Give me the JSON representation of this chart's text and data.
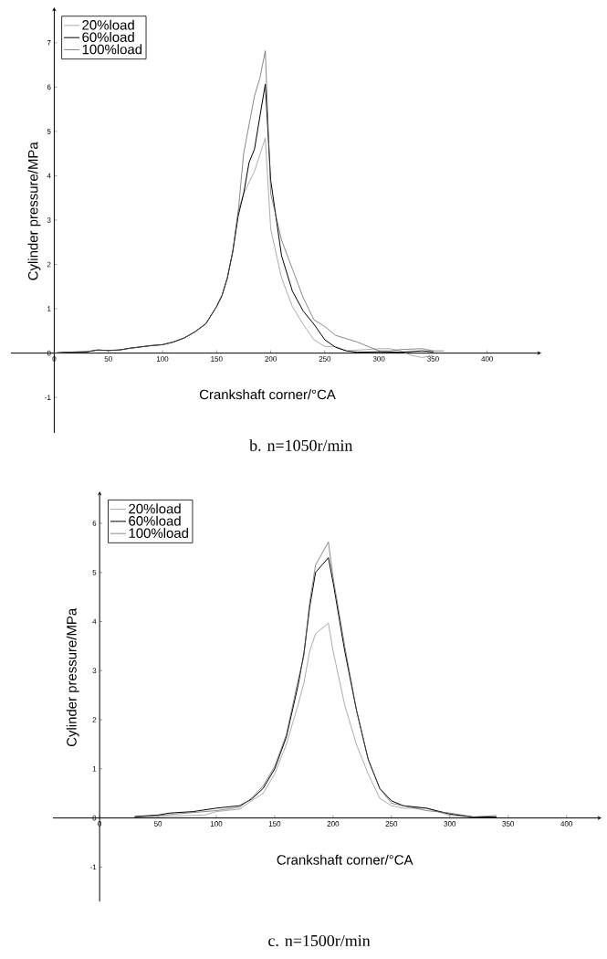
{
  "chart_data": [
    {
      "type": "line",
      "title": "b. n=1050r/min",
      "xlabel": "Crankshaft corner/°CA",
      "ylabel": "Cylinder pressure/MPa",
      "xlim": [
        -40,
        450
      ],
      "ylim": [
        -1.8,
        7.8
      ],
      "xticks": [
        0,
        50,
        100,
        150,
        200,
        250,
        300,
        350,
        400
      ],
      "yticks": [
        -1,
        0,
        1,
        2,
        3,
        4,
        5,
        6,
        7
      ],
      "legend": "top left",
      "marker": "none",
      "line_style": "solid",
      "series": [
        {
          "name": "20%load",
          "color": "#888888",
          "x": [
            0,
            10,
            30,
            40,
            50,
            60,
            70,
            80,
            90,
            100,
            110,
            120,
            130,
            140,
            150,
            155,
            160,
            165,
            170,
            175,
            185,
            195,
            200,
            210,
            220,
            230,
            240,
            250,
            260,
            270,
            300,
            310,
            320,
            330,
            340,
            350
          ],
          "values": [
            0,
            0.02,
            0.03,
            0.07,
            0.06,
            0.07,
            0.11,
            0.14,
            0.17,
            0.19,
            0.25,
            0.34,
            0.48,
            0.66,
            1.05,
            1.3,
            1.7,
            2.3,
            3.2,
            3.6,
            4.1,
            4.85,
            2.8,
            1.7,
            1.05,
            0.65,
            0.3,
            0.15,
            0.15,
            0.05,
            0.1,
            0.1,
            0.05,
            -0.05,
            -0.1,
            -0.05
          ]
        },
        {
          "name": "60%load",
          "color": "#000000",
          "x": [
            0,
            10,
            30,
            40,
            50,
            60,
            70,
            80,
            90,
            100,
            110,
            120,
            130,
            140,
            150,
            155,
            160,
            165,
            170,
            175,
            180,
            185,
            195,
            200,
            210,
            220,
            230,
            240,
            250,
            260,
            270,
            280,
            300,
            320,
            340,
            350
          ],
          "values": [
            0,
            0.02,
            0.03,
            0.07,
            0.06,
            0.07,
            0.11,
            0.14,
            0.17,
            0.19,
            0.25,
            0.34,
            0.48,
            0.66,
            1.05,
            1.3,
            1.7,
            2.3,
            3.1,
            3.6,
            4.3,
            4.6,
            6.07,
            3.9,
            2.2,
            1.4,
            0.95,
            0.65,
            0.3,
            0.13,
            0.05,
            0.02,
            0.03,
            0.02,
            0.05,
            0.03
          ]
        },
        {
          "name": "100%load",
          "color": "#555555",
          "x": [
            0,
            10,
            30,
            40,
            50,
            60,
            70,
            80,
            90,
            100,
            110,
            120,
            130,
            140,
            150,
            155,
            160,
            165,
            170,
            175,
            185,
            190,
            195,
            200,
            210,
            220,
            230,
            240,
            250,
            260,
            280,
            300,
            310,
            320,
            340,
            350,
            360
          ],
          "values": [
            0,
            0.02,
            0.03,
            0.07,
            0.06,
            0.07,
            0.11,
            0.14,
            0.17,
            0.19,
            0.25,
            0.34,
            0.48,
            0.66,
            1.05,
            1.3,
            1.7,
            2.3,
            3.2,
            4.5,
            5.8,
            6.2,
            6.82,
            3.6,
            2.55,
            1.9,
            1.25,
            0.75,
            0.6,
            0.4,
            0.25,
            0.05,
            0.05,
            0.08,
            0.1,
            0.05,
            0.05
          ]
        }
      ]
    },
    {
      "type": "line",
      "title": "c. n=1500r/min",
      "xlabel": "Crankshaft corner/°CA",
      "ylabel": "Cylinder pressure/MPa",
      "xlim": [
        -40,
        430
      ],
      "ylim": [
        -1.7,
        6.65
      ],
      "xticks": [
        0,
        50,
        100,
        150,
        200,
        250,
        300,
        350,
        400
      ],
      "yticks": [
        -1,
        0,
        1,
        2,
        3,
        4,
        5,
        6
      ],
      "legend": "top left",
      "marker": "none",
      "line_style": "solid",
      "series": [
        {
          "name": "20%load",
          "color": "#888888",
          "x": [
            30,
            50,
            90,
            100,
            120,
            130,
            140,
            150,
            160,
            170,
            175,
            180,
            185,
            196,
            200,
            210,
            220,
            230,
            240,
            250,
            260,
            280,
            300,
            320,
            340
          ],
          "values": [
            0.02,
            0.03,
            0.06,
            0.13,
            0.18,
            0.35,
            0.5,
            0.9,
            1.5,
            2.3,
            2.75,
            3.4,
            3.75,
            3.97,
            3.4,
            2.3,
            1.5,
            0.9,
            0.4,
            0.25,
            0.2,
            0.2,
            0.05,
            0.02,
            0.02
          ]
        },
        {
          "name": "60%load",
          "color": "#000000",
          "x": [
            30,
            50,
            60,
            80,
            100,
            120,
            130,
            140,
            150,
            160,
            170,
            175,
            180,
            185,
            196,
            200,
            210,
            220,
            230,
            240,
            250,
            260,
            280,
            300,
            320,
            340
          ],
          "values": [
            0.03,
            0.06,
            0.1,
            0.13,
            0.2,
            0.25,
            0.38,
            0.6,
            1.0,
            1.65,
            2.7,
            3.35,
            4.3,
            5.0,
            5.3,
            4.8,
            3.4,
            2.2,
            1.2,
            0.6,
            0.35,
            0.25,
            0.2,
            0.08,
            0.02,
            0.02
          ]
        },
        {
          "name": "100%load",
          "color": "#555555",
          "x": [
            30,
            50,
            100,
            120,
            130,
            140,
            150,
            160,
            170,
            175,
            180,
            185,
            196,
            200,
            210,
            220,
            230,
            240,
            250,
            260,
            280,
            300,
            320,
            340
          ],
          "values": [
            0.02,
            0.05,
            0.15,
            0.22,
            0.4,
            0.65,
            1.05,
            1.7,
            2.8,
            3.3,
            4.4,
            5.15,
            5.62,
            4.9,
            3.5,
            2.2,
            1.2,
            0.6,
            0.3,
            0.25,
            0.15,
            0.1,
            0.02,
            0.05
          ]
        }
      ]
    }
  ]
}
